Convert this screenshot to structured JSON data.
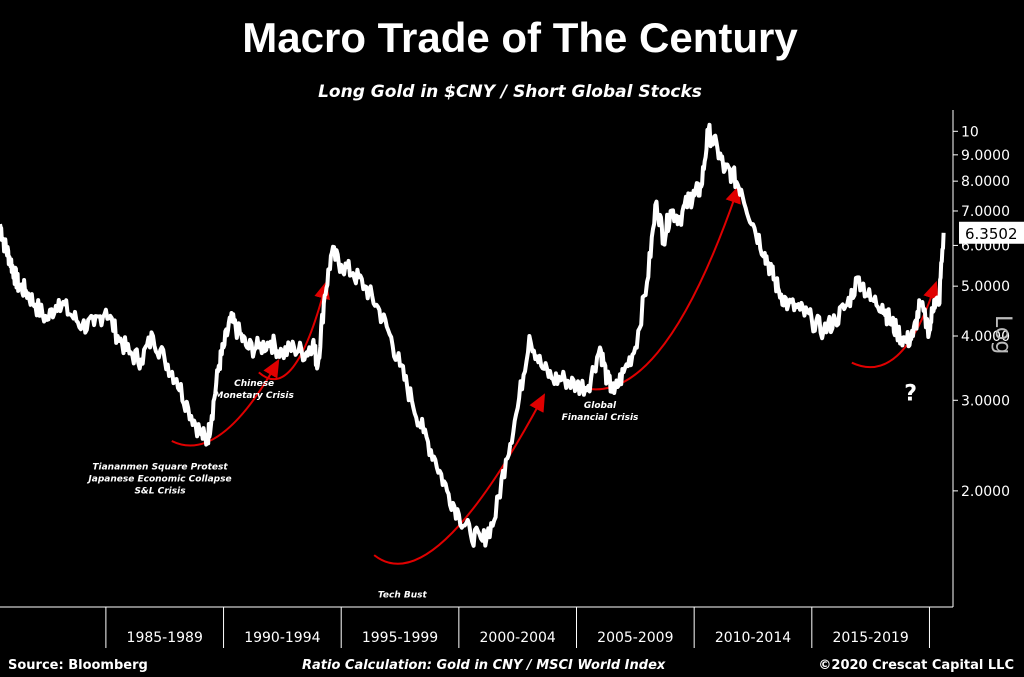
{
  "header": {
    "title": "Macro Trade of The Century",
    "subtitle": "Long Gold in $CNY / Short Global Stocks"
  },
  "footer": {
    "source": "Source: Bloomberg",
    "calc": "Ratio Calculation: Gold in CNY / MSCI World Index",
    "copyright": "©2020 Crescat Capital LLC"
  },
  "colors": {
    "line": "#ffffff",
    "arrow": "#e00000",
    "background": "#000000",
    "axis": "#ffffff"
  },
  "chart_data": {
    "type": "line",
    "title": "Macro Trade of The Century",
    "subtitle": "Long Gold in $CNY / Short Global Stocks",
    "y_scale": "log",
    "ylabel": "Log",
    "ylim": [
      1.2,
      11
    ],
    "grid": false,
    "y_ticks": [
      {
        "value": 2,
        "label": "2.0000"
      },
      {
        "value": 3,
        "label": "3.0000"
      },
      {
        "value": 4,
        "label": "4.0000"
      },
      {
        "value": 5,
        "label": "5.0000"
      },
      {
        "value": 6,
        "label": "6.0000"
      },
      {
        "value": 7,
        "label": "7.0000"
      },
      {
        "value": 8,
        "label": "8.0000"
      },
      {
        "value": 9,
        "label": "9.0000"
      },
      {
        "value": 10,
        "label": "10"
      }
    ],
    "last_value_label": "6.3502",
    "last_value": 6.35,
    "xlim": [
      1980.5,
      2021.0
    ],
    "categories": [
      {
        "label": "1985-1989",
        "start": 1985,
        "end": 1990
      },
      {
        "label": "1990-1994",
        "start": 1990,
        "end": 1995
      },
      {
        "label": "1995-1999",
        "start": 1995,
        "end": 2000
      },
      {
        "label": "2000-2004",
        "start": 2000,
        "end": 2005
      },
      {
        "label": "2005-2009",
        "start": 2005,
        "end": 2010
      },
      {
        "label": "2010-2014",
        "start": 2010,
        "end": 2015
      },
      {
        "label": "2015-2019",
        "start": 2015,
        "end": 2020
      }
    ],
    "series": [
      {
        "x": [
          1980.5,
          1980.7,
          1980.9,
          1981.1,
          1981.3,
          1981.6,
          1982.0,
          1982.5,
          1983.0,
          1983.5,
          1984.0,
          1984.5,
          1985.0,
          1985.5,
          1986.0,
          1986.5,
          1987.0,
          1987.5,
          1988.0,
          1988.5,
          1989.0,
          1989.3,
          1989.5,
          1989.8,
          1990.0,
          1990.3,
          1990.6,
          1991.0,
          1991.5,
          1992.0,
          1992.5,
          1993.0,
          1993.5,
          1993.8,
          1994.0,
          1994.3,
          1994.6,
          1995.0,
          1995.5,
          1996.0,
          1996.5,
          1997.0,
          1997.5,
          1998.0,
          1998.5,
          1999.0,
          1999.5,
          2000.0,
          2000.5,
          2001.0,
          2001.5,
          2002.0,
          2002.5,
          2003.0,
          2003.5,
          2004.0,
          2004.5,
          2005.0,
          2005.5,
          2006.0,
          2006.3,
          2006.6,
          2007.0,
          2007.5,
          2008.0,
          2008.4,
          2008.7,
          2009.0,
          2009.4,
          2009.8,
          2010.0,
          2010.3,
          2010.6,
          2011.0,
          2011.3,
          2011.6,
          2012.0,
          2012.5,
          2013.0,
          2013.3,
          2013.6,
          2014.0,
          2014.5,
          2015.0,
          2015.5,
          2016.0,
          2016.5,
          2017.0,
          2017.5,
          2018.0,
          2018.3,
          2018.6,
          2019.0,
          2019.3,
          2019.6,
          2020.0,
          2020.2,
          2020.4,
          2020.6
        ],
        "y": [
          6.6,
          6.0,
          5.7,
          5.3,
          5.0,
          4.9,
          4.6,
          4.3,
          4.7,
          4.4,
          4.2,
          4.2,
          4.5,
          4.0,
          3.7,
          3.6,
          4.0,
          3.6,
          3.3,
          2.9,
          2.6,
          2.5,
          2.8,
          3.5,
          3.8,
          4.3,
          4.1,
          3.8,
          3.8,
          3.9,
          3.7,
          3.8,
          3.7,
          3.9,
          3.5,
          4.8,
          5.8,
          5.5,
          5.3,
          5.0,
          4.6,
          4.1,
          3.5,
          3.0,
          2.6,
          2.3,
          2.0,
          1.8,
          1.65,
          1.6,
          1.75,
          2.3,
          2.9,
          4.0,
          3.5,
          3.3,
          3.3,
          3.2,
          3.2,
          3.8,
          3.3,
          3.1,
          3.4,
          3.8,
          5.1,
          7.3,
          6.2,
          7.0,
          6.8,
          7.4,
          7.5,
          7.8,
          10.0,
          9.2,
          8.4,
          8.3,
          7.7,
          6.6,
          5.8,
          5.3,
          4.9,
          4.6,
          4.5,
          4.3,
          4.1,
          4.3,
          4.6,
          5.2,
          4.7,
          4.6,
          4.3,
          4.1,
          3.9,
          4.0,
          4.6,
          4.1,
          4.7,
          4.6,
          6.35
        ]
      }
    ],
    "annotations": [
      {
        "lines": [
          "Tiananmen Square Protest",
          "Japanese Economic Collapse",
          "S&L Crisis"
        ]
      },
      {
        "lines": [
          "Chinese",
          "Monetary Crisis"
        ]
      },
      {
        "lines": [
          "Tech Bust"
        ]
      },
      {
        "lines": [
          "Global",
          "Financial Crisis"
        ]
      },
      {
        "lines": [
          "?"
        ]
      }
    ]
  }
}
